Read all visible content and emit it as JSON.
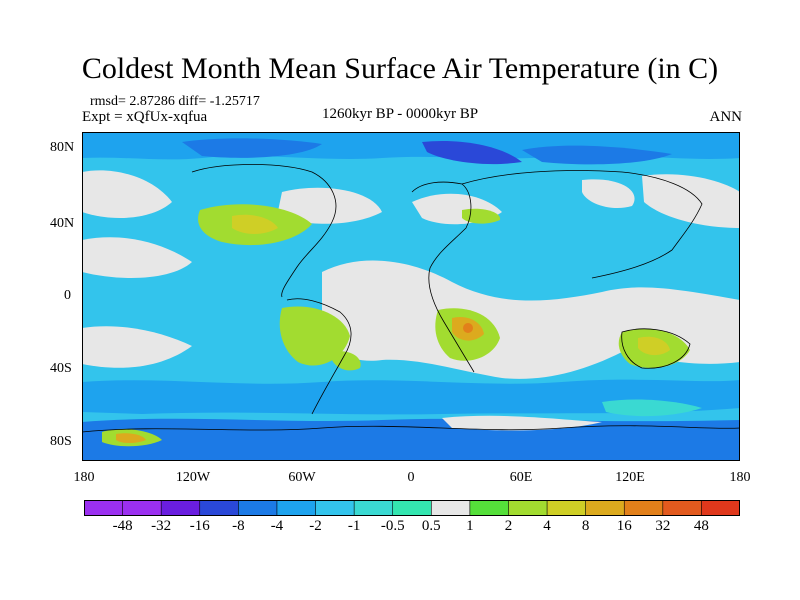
{
  "title": "Coldest Month Mean Surface Air Temperature (in C)",
  "stats": "rmsd= 2.87286 diff= -1.25717",
  "experiment": "Expt = xQfUx-xqfua",
  "period": "1260kyr BP - 0000kyr BP",
  "season": "ANN",
  "lat_labels": [
    "80N",
    "40N",
    "0",
    "40S",
    "80S"
  ],
  "lon_labels": [
    "180",
    "120W",
    "60W",
    "0",
    "60E",
    "120E",
    "180"
  ],
  "colorbar": {
    "labels": [
      "-48",
      "-32",
      "-16",
      "-8",
      "-4",
      "-2",
      "-1",
      "-0.5",
      "0.5",
      "1",
      "2",
      "4",
      "8",
      "16",
      "32",
      "48"
    ],
    "colors": [
      "#9b30f0",
      "#6a1ee0",
      "#2a48d8",
      "#1c7ae6",
      "#1ea3ee",
      "#33c4ec",
      "#3ad9d2",
      "#34e6b0",
      "#e7e7e7",
      "#55df3a",
      "#a2dc30",
      "#cfcf26",
      "#dcaa1e",
      "#e2801a",
      "#e25a1e",
      "#e0381c"
    ]
  },
  "legend_colors": {
    "cyan": "#3ad9d2",
    "teal": "#1ea3ee",
    "blue": "#1c7ae6",
    "neutral": "#e7e7e7",
    "green": "#a2dc30",
    "yellow": "#cfcf26",
    "orange": "#dcaa1e",
    "red": "#e25a1e",
    "purple": "#6a1ee0"
  }
}
